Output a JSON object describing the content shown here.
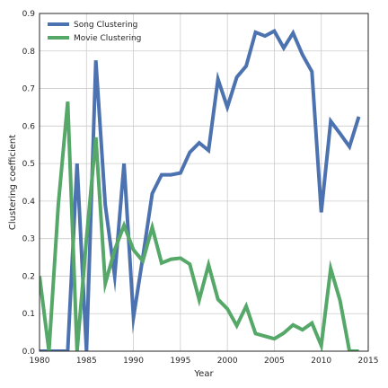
{
  "chart_data": {
    "type": "line",
    "xlabel": "Year",
    "ylabel": "Clustering coefficient",
    "xlim": [
      1980,
      2015
    ],
    "ylim": [
      0.0,
      0.9
    ],
    "xticks": [
      "1980",
      "1985",
      "1990",
      "1995",
      "2000",
      "2005",
      "2010",
      "2015"
    ],
    "yticks": [
      "0.0",
      "0.1",
      "0.2",
      "0.3",
      "0.4",
      "0.5",
      "0.6",
      "0.7",
      "0.8",
      "0.9"
    ],
    "grid": true,
    "legend_position": "top-left",
    "series": [
      {
        "name": "Song Clustering",
        "color": "#4c72b0",
        "x": [
          1980,
          1981,
          1982,
          1983,
          1984,
          1985,
          1986,
          1987,
          1988,
          1989,
          1990,
          1991,
          1992,
          1993,
          1994,
          1995,
          1996,
          1997,
          1998,
          1999,
          2000,
          2001,
          2002,
          2003,
          2004,
          2005,
          2006,
          2007,
          2008,
          2009,
          2010,
          2011,
          2012,
          2013,
          2014
        ],
        "values": [
          0.0,
          0.0,
          0.0,
          0.0,
          0.5,
          0.0,
          0.775,
          0.39,
          0.2,
          0.5,
          0.09,
          0.25,
          0.42,
          0.47,
          0.47,
          0.475,
          0.53,
          0.555,
          0.535,
          0.725,
          0.65,
          0.73,
          0.76,
          0.85,
          0.84,
          0.853,
          0.808,
          0.848,
          0.79,
          0.745,
          0.37,
          0.613,
          0.58,
          0.545,
          0.625
        ]
      },
      {
        "name": "Movie Clustering",
        "color": "#55a868",
        "x": [
          1980,
          1981,
          1982,
          1983,
          1984,
          1985,
          1986,
          1987,
          1988,
          1989,
          1990,
          1991,
          1992,
          1993,
          1994,
          1995,
          1996,
          1997,
          1998,
          1999,
          2000,
          2001,
          2002,
          2003,
          2004,
          2005,
          2006,
          2007,
          2008,
          2009,
          2010,
          2011,
          2012,
          2013,
          2014
        ],
        "values": [
          0.2,
          0.0,
          0.39,
          0.665,
          0.0,
          0.3,
          0.57,
          0.18,
          0.27,
          0.335,
          0.27,
          0.24,
          0.33,
          0.235,
          0.245,
          0.248,
          0.232,
          0.137,
          0.23,
          0.138,
          0.113,
          0.068,
          0.12,
          0.047,
          0.04,
          0.033,
          0.048,
          0.07,
          0.057,
          0.075,
          0.015,
          0.22,
          0.135,
          0.0,
          0.0
        ]
      }
    ]
  }
}
